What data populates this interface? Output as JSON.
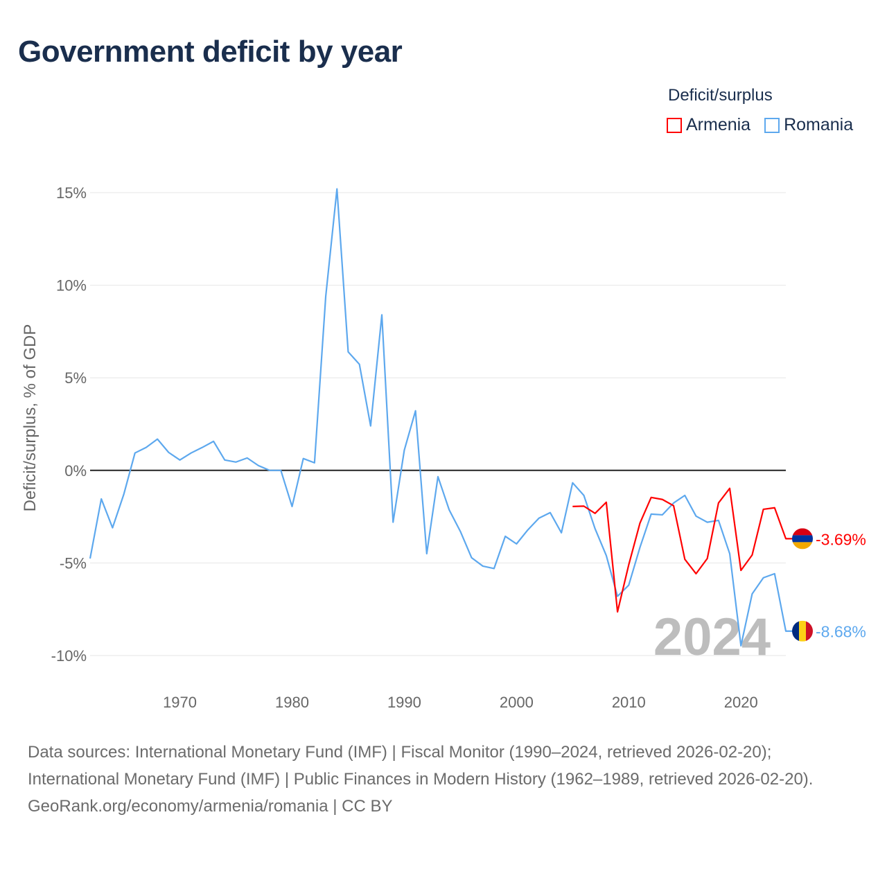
{
  "title": "Government deficit by year",
  "legend": {
    "title": "Deficit/surplus",
    "items": [
      {
        "label": "Armenia",
        "color": "#ff0000"
      },
      {
        "label": "Romania",
        "color": "#5da8ee"
      }
    ]
  },
  "year_watermark": "2024",
  "chart_data": {
    "type": "line",
    "title": "Government deficit by year",
    "ylabel": "Deficit/surplus, % of GDP",
    "xlabel": "",
    "xlim": [
      1962,
      2024
    ],
    "ylim": [
      -10,
      15
    ],
    "xticks": [
      1970,
      1980,
      1990,
      2000,
      2010,
      2020
    ],
    "yticks": [
      {
        "v": 15,
        "label": "15%"
      },
      {
        "v": 10,
        "label": "10%"
      },
      {
        "v": 5,
        "label": "5%"
      },
      {
        "v": 0,
        "label": "0%"
      },
      {
        "v": -5,
        "label": "-5%"
      },
      {
        "v": -10,
        "label": "-10%"
      }
    ],
    "legend_position": "top-right",
    "series": [
      {
        "name": "Romania",
        "color": "#5da8ee",
        "end_label": "-8.68%",
        "start_year": 1962,
        "values": [
          -4.76,
          -1.54,
          -3.1,
          -1.3,
          0.94,
          1.24,
          1.69,
          0.97,
          0.56,
          0.94,
          1.24,
          1.57,
          0.56,
          0.45,
          0.67,
          0.26,
          0,
          0,
          -1.95,
          0.64,
          0.41,
          9.4,
          15.2,
          6.4,
          5.73,
          2.4,
          8.4,
          -2.8,
          1.09,
          3.22,
          -4.5,
          -0.34,
          -2.13,
          -3.3,
          -4.72,
          -5.17,
          -5.3,
          -3.56,
          -3.97,
          -3.22,
          -2.58,
          -2.28,
          -3.37,
          -0.67,
          -1.35,
          -3.15,
          -4.6,
          -6.8,
          -6.2,
          -4.16,
          -2.36,
          -2.4,
          -1.76,
          -1.35,
          -2.47,
          -2.8,
          -2.7,
          -4.5,
          -9.47,
          -6.67,
          -5.8,
          -5.58,
          -8.68
        ]
      },
      {
        "name": "Armenia",
        "color": "#ff0000",
        "end_label": "-3.69%",
        "start_year": 2005,
        "values": [
          -1.95,
          -1.93,
          -2.32,
          -1.72,
          -7.64,
          -5.1,
          -2.85,
          -1.46,
          -1.57,
          -1.91,
          -4.8,
          -5.58,
          -4.76,
          -1.76,
          -0.97,
          -5.4,
          -4.57,
          -2.1,
          -2.02,
          -3.69
        ]
      }
    ]
  },
  "footer": {
    "sources": "Data sources: International Monetary Fund (IMF) | Fiscal Monitor (1990–2024, retrieved 2026-02-20); International Monetary Fund (IMF) | Public Finances in Modern History (1962–1989, retrieved 2026-02-20).",
    "credit": "GeoRank.org/economy/armenia/romania | CC BY"
  }
}
